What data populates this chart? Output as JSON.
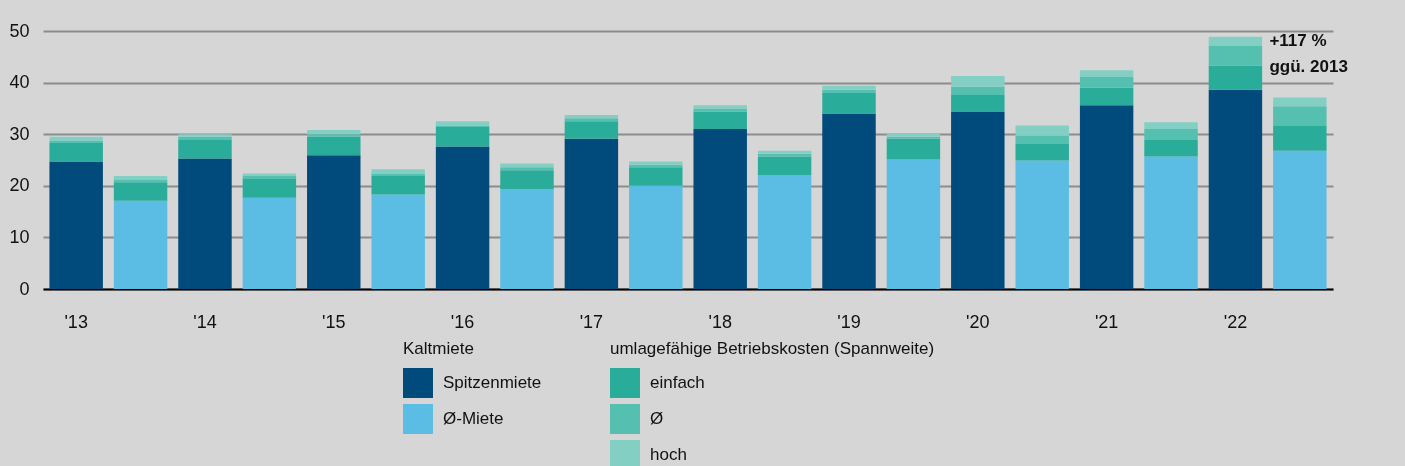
{
  "chart_data": {
    "type": "bar",
    "stacked": true,
    "categories": [
      "'13",
      null,
      "'14",
      null,
      "'15",
      null,
      "'16",
      null,
      "'17",
      null,
      "'18",
      null,
      "'19",
      null,
      "'20",
      null,
      "'21",
      null,
      "'22",
      null
    ],
    "series": [
      {
        "name": "Spitzenmiete",
        "color": "#004a7c",
        "values": [
          24.7,
          null,
          25.3,
          null,
          25.9,
          null,
          27.6,
          null,
          29.1,
          null,
          31.0,
          null,
          34.0,
          null,
          34.4,
          null,
          35.6,
          null,
          38.6,
          null
        ]
      },
      {
        "name": "Ø-Miete",
        "color": "#5bbde3",
        "values": [
          null,
          17.1,
          null,
          17.7,
          null,
          18.3,
          null,
          19.4,
          null,
          20.0,
          null,
          22.1,
          null,
          25.1,
          null,
          24.9,
          null,
          25.7,
          null,
          26.8
        ]
      },
      {
        "name": "einfach",
        "color": "#2aac9a",
        "values": [
          3.6,
          3.6,
          3.6,
          3.6,
          3.6,
          3.6,
          3.8,
          3.6,
          3.4,
          3.6,
          3.4,
          3.6,
          4.0,
          4.0,
          3.2,
          3.2,
          3.4,
          3.2,
          4.7,
          4.8
        ]
      },
      {
        "name": "Ø",
        "color": "#55bfb0",
        "values": [
          0.4,
          0.4,
          0.6,
          0.6,
          0.5,
          0.5,
          0.3,
          0.6,
          0.6,
          0.5,
          0.6,
          0.5,
          0.6,
          0.4,
          1.6,
          1.6,
          2.1,
          2.1,
          3.8,
          3.8
        ]
      },
      {
        "name": "hoch",
        "color": "#84cfc4",
        "values": [
          0.8,
          0.8,
          0.5,
          0.5,
          0.8,
          0.8,
          0.8,
          0.7,
          0.6,
          0.6,
          0.6,
          0.6,
          0.8,
          0.7,
          2.1,
          2.0,
          1.3,
          1.3,
          1.8,
          1.7
        ]
      }
    ],
    "ylim": [
      0,
      50
    ],
    "yticks": [
      0,
      10,
      20,
      30,
      40,
      50
    ],
    "grid": "y",
    "legend": "bottom",
    "legend_title": "Kaltmiete",
    "annotations": [
      {
        "text": "+117 %\nggü. 2013",
        "x": "'22",
        "y": 48.9
      },
      "umlagefähige Betriebskosten (Spannweite)"
    ]
  }
}
